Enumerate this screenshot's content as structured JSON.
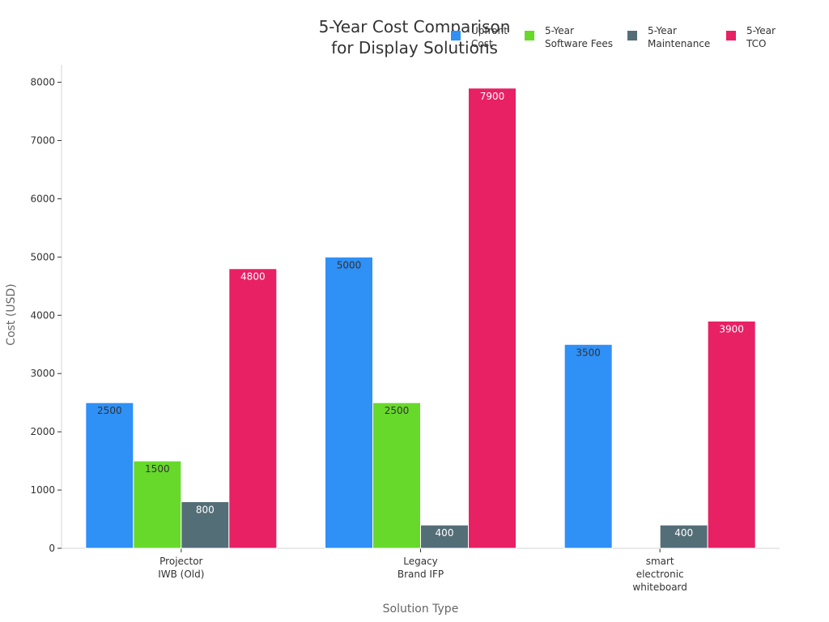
{
  "chart_data": {
    "type": "bar",
    "title": "5-Year Cost Comparison for Display Solutions",
    "title_lines": [
      "5-Year Cost Comparison",
      "for Display Solutions"
    ],
    "xlabel": "Solution Type",
    "ylabel": "Cost (USD)",
    "ylim": [
      0,
      8300
    ],
    "yticks": [
      0,
      1000,
      2000,
      3000,
      4000,
      5000,
      6000,
      7000,
      8000
    ],
    "grid": false,
    "legend_position": "top-right",
    "categories": [
      [
        "Projector",
        "IWB (Old)"
      ],
      [
        "Legacy",
        "Brand IFP"
      ],
      [
        "smart",
        "electronic",
        "whiteboard"
      ]
    ],
    "series": [
      {
        "name": [
          "Upfront",
          "Cost"
        ],
        "color": "#2f90f6",
        "label_color": "#333333",
        "values": [
          2500,
          5000,
          3500
        ]
      },
      {
        "name": [
          "5-Year",
          "Software Fees"
        ],
        "color": "#67d92b",
        "label_color": "#333333",
        "values": [
          1500,
          2500,
          0
        ]
      },
      {
        "name": [
          "5-Year",
          "Maintenance"
        ],
        "color": "#546e78",
        "label_color": "#ffffff",
        "values": [
          800,
          400,
          400
        ]
      },
      {
        "name": [
          "5-Year",
          "TCO"
        ],
        "color": "#e82064",
        "label_color": "#ffffff",
        "values": [
          4800,
          7900,
          3900
        ]
      }
    ]
  }
}
